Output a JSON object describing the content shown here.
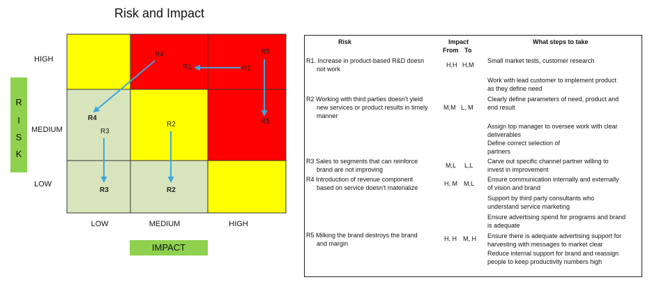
{
  "title": "Risk and Impact",
  "axes": {
    "risk_letters": [
      "R",
      "I",
      "S",
      "K"
    ],
    "impact_label": "IMPACT",
    "row_labels": [
      "HIGH",
      "MEDIUM",
      "LOW"
    ],
    "col_labels": [
      "LOW",
      "MEDIUM",
      "HIGH"
    ]
  },
  "colors": {
    "red": "#ff0000",
    "yellow": "#ffff00",
    "sage": "#d8e4bc",
    "axis_green": "#8fd14f",
    "arrow": "#3aa8dc"
  },
  "grid": [
    [
      "yellow",
      "red",
      "red"
    ],
    [
      "sage",
      "yellow",
      "red"
    ],
    [
      "sage",
      "sage",
      "yellow"
    ]
  ],
  "markers": {
    "r4_start": "R4",
    "r1_end": "R1",
    "r1_start": "R1",
    "r5_start": "R5",
    "r4_end": "R4",
    "r3_start": "R3",
    "r2_start": "R2",
    "r5_end": "R5",
    "r3_end": "R3",
    "r2_end": "R2"
  },
  "table": {
    "headers": {
      "risk": "Risk",
      "impact": "Impact",
      "from": "From",
      "to": "To",
      "steps": "What steps to take"
    },
    "rows": [
      {
        "risk": [
          "R1. Increase in product-based R&D doesn",
          "not work"
        ],
        "from": "H,H",
        "to": "H,M",
        "steps": [
          "Small market tests, customer research",
          "",
          "Work with lead customer to implement product",
          "as they define need"
        ]
      },
      {
        "risk": [
          "R2  Working with third parties doesn't yield",
          "new services or product results in timely",
          "manner"
        ],
        "from": "M,M",
        "to": "L, M",
        "steps": [
          "Clearly define parameters of need, product and",
          "end result",
          "",
          "Assign top manager to oversee work with clear",
          "deliverables",
          "Define correct selection of",
          "partners"
        ]
      },
      {
        "risk": [
          "R3  Sales to segments that can reinforce",
          "brand are not improving"
        ],
        "from": "M,L",
        "to": "L,L",
        "steps": [
          "Carve out specific channel partner willing to",
          "invest in improvement"
        ]
      },
      {
        "risk": [
          "R4  Introduction of revenue component",
          "based on service doesn't materialize"
        ],
        "from": "H, M",
        "to": "M,L",
        "steps": [
          "Ensure communication internally and externally",
          "of vision and brand",
          "Support by third party consultants who",
          "understand service marketing"
        ]
      },
      {
        "risk": [
          "R5  Milking the brand destroys the brand",
          "and margin"
        ],
        "from": "H, H",
        "to": "M, H",
        "steps": [
          "Ensure advertising spend for programs and brand",
          "is adequate",
          "Ensure there is adequate advertising support for",
          "harvesting with messages to market clear",
          "Reduce internal support for brand and reassign",
          "people to keep productivity numbers high"
        ]
      }
    ]
  }
}
